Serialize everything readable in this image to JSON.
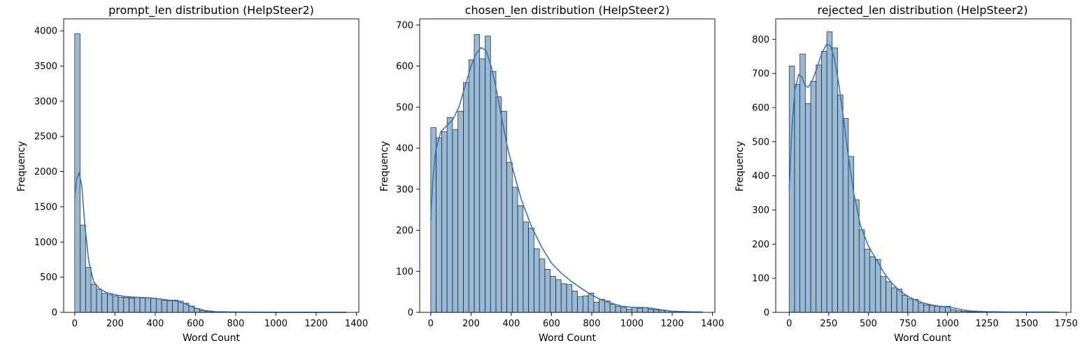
{
  "chart_data": [
    {
      "type": "histogram",
      "title": "prompt_len distribution (HelpSteer2)",
      "xlabel": "Word Count",
      "ylabel": "Frequency",
      "xlim": [
        -55,
        1412
      ],
      "ylim": [
        0,
        4170
      ],
      "xticks": [
        0,
        200,
        400,
        600,
        800,
        1000,
        1200,
        1400
      ],
      "yticks": [
        0,
        500,
        1000,
        1500,
        2000,
        2500,
        3000,
        3500,
        4000
      ],
      "bin_start": 0,
      "bin_width": 27,
      "values": [
        3960,
        1240,
        640,
        400,
        330,
        270,
        250,
        230,
        215,
        210,
        205,
        210,
        205,
        210,
        200,
        190,
        170,
        165,
        175,
        160,
        130,
        90,
        55,
        25,
        15,
        8,
        6,
        5,
        4,
        3,
        3,
        2,
        2,
        2,
        2,
        1,
        1,
        1,
        1,
        1,
        1,
        1,
        1,
        1,
        1,
        1,
        1,
        1,
        1,
        1
      ],
      "kde": [
        [
          0,
          1640
        ],
        [
          10,
          1900
        ],
        [
          22,
          1980
        ],
        [
          35,
          1800
        ],
        [
          50,
          1250
        ],
        [
          70,
          720
        ],
        [
          95,
          430
        ],
        [
          125,
          330
        ],
        [
          160,
          280
        ],
        [
          200,
          250
        ],
        [
          250,
          225
        ],
        [
          300,
          215
        ],
        [
          350,
          210
        ],
        [
          400,
          200
        ],
        [
          450,
          180
        ],
        [
          500,
          165
        ],
        [
          550,
          120
        ],
        [
          600,
          60
        ],
        [
          650,
          25
        ],
        [
          700,
          10
        ],
        [
          800,
          4
        ],
        [
          900,
          2
        ],
        [
          1000,
          1
        ],
        [
          1100,
          1
        ],
        [
          1200,
          1
        ],
        [
          1350,
          1
        ]
      ],
      "color": "#4682b4",
      "line_color": "#3a76af"
    },
    {
      "type": "histogram",
      "title": "chosen_len distribution (HelpSteer2)",
      "xlabel": "Word Count",
      "ylabel": "Frequency",
      "xlim": [
        -55,
        1412
      ],
      "ylim": [
        0,
        715
      ],
      "xticks": [
        0,
        200,
        400,
        600,
        800,
        1000,
        1200,
        1400
      ],
      "yticks": [
        0,
        100,
        200,
        300,
        400,
        500,
        600,
        700
      ],
      "bin_start": 0,
      "bin_width": 27,
      "values": [
        450,
        425,
        440,
        475,
        445,
        490,
        560,
        615,
        677,
        618,
        673,
        587,
        525,
        490,
        365,
        305,
        260,
        220,
        205,
        155,
        130,
        105,
        88,
        80,
        70,
        68,
        52,
        38,
        40,
        47,
        25,
        32,
        28,
        20,
        15,
        12,
        8,
        12,
        10,
        12,
        8,
        6,
        5,
        4,
        3,
        2,
        2,
        1,
        1,
        1
      ],
      "kde": [
        [
          0,
          225
        ],
        [
          10,
          320
        ],
        [
          25,
          395
        ],
        [
          50,
          440
        ],
        [
          80,
          455
        ],
        [
          110,
          470
        ],
        [
          140,
          500
        ],
        [
          170,
          550
        ],
        [
          200,
          600
        ],
        [
          225,
          630
        ],
        [
          250,
          645
        ],
        [
          275,
          638
        ],
        [
          300,
          600
        ],
        [
          325,
          545
        ],
        [
          350,
          480
        ],
        [
          380,
          405
        ],
        [
          410,
          345
        ],
        [
          450,
          275
        ],
        [
          500,
          210
        ],
        [
          550,
          160
        ],
        [
          600,
          120
        ],
        [
          650,
          95
        ],
        [
          700,
          75
        ],
        [
          750,
          58
        ],
        [
          800,
          42
        ],
        [
          850,
          30
        ],
        [
          900,
          22
        ],
        [
          950,
          15
        ],
        [
          1000,
          12
        ],
        [
          1050,
          12
        ],
        [
          1100,
          10
        ],
        [
          1150,
          6
        ],
        [
          1200,
          3
        ],
        [
          1300,
          1
        ],
        [
          1350,
          1
        ]
      ],
      "color": "#4682b4",
      "line_color": "#3a76af"
    },
    {
      "type": "histogram",
      "title": "rejected_len distribution (HelpSteer2)",
      "xlabel": "Word Count",
      "ylabel": "Frequency",
      "xlim": [
        -85,
        1780
      ],
      "ylim": [
        0,
        860
      ],
      "xticks": [
        0,
        250,
        500,
        750,
        1000,
        1250,
        1500,
        1750
      ],
      "yticks": [
        0,
        100,
        200,
        300,
        400,
        500,
        600,
        700,
        800
      ],
      "bin_start": 0,
      "bin_width": 34,
      "values": [
        722,
        668,
        757,
        612,
        677,
        725,
        765,
        822,
        775,
        637,
        568,
        457,
        330,
        242,
        185,
        163,
        155,
        105,
        90,
        72,
        68,
        50,
        40,
        38,
        28,
        22,
        20,
        18,
        16,
        18,
        8,
        5,
        3,
        2,
        2,
        1,
        1,
        1,
        1,
        1,
        1,
        1,
        1,
        1,
        1,
        1,
        1,
        1,
        1,
        1
      ],
      "kde": [
        [
          0,
          355
        ],
        [
          15,
          520
        ],
        [
          35,
          650
        ],
        [
          60,
          697
        ],
        [
          80,
          690
        ],
        [
          100,
          665
        ],
        [
          120,
          660
        ],
        [
          145,
          678
        ],
        [
          175,
          715
        ],
        [
          205,
          758
        ],
        [
          235,
          785
        ],
        [
          260,
          782
        ],
        [
          285,
          745
        ],
        [
          310,
          680
        ],
        [
          340,
          580
        ],
        [
          370,
          470
        ],
        [
          410,
          345
        ],
        [
          450,
          255
        ],
        [
          500,
          195
        ],
        [
          550,
          155
        ],
        [
          600,
          115
        ],
        [
          650,
          85
        ],
        [
          700,
          62
        ],
        [
          750,
          47
        ],
        [
          800,
          36
        ],
        [
          850,
          27
        ],
        [
          900,
          22
        ],
        [
          950,
          18
        ],
        [
          1000,
          16
        ],
        [
          1050,
          12
        ],
        [
          1100,
          7
        ],
        [
          1150,
          4
        ],
        [
          1250,
          2
        ],
        [
          1400,
          1
        ],
        [
          1690,
          1
        ]
      ],
      "color": "#4682b4",
      "line_color": "#3a76af"
    }
  ]
}
